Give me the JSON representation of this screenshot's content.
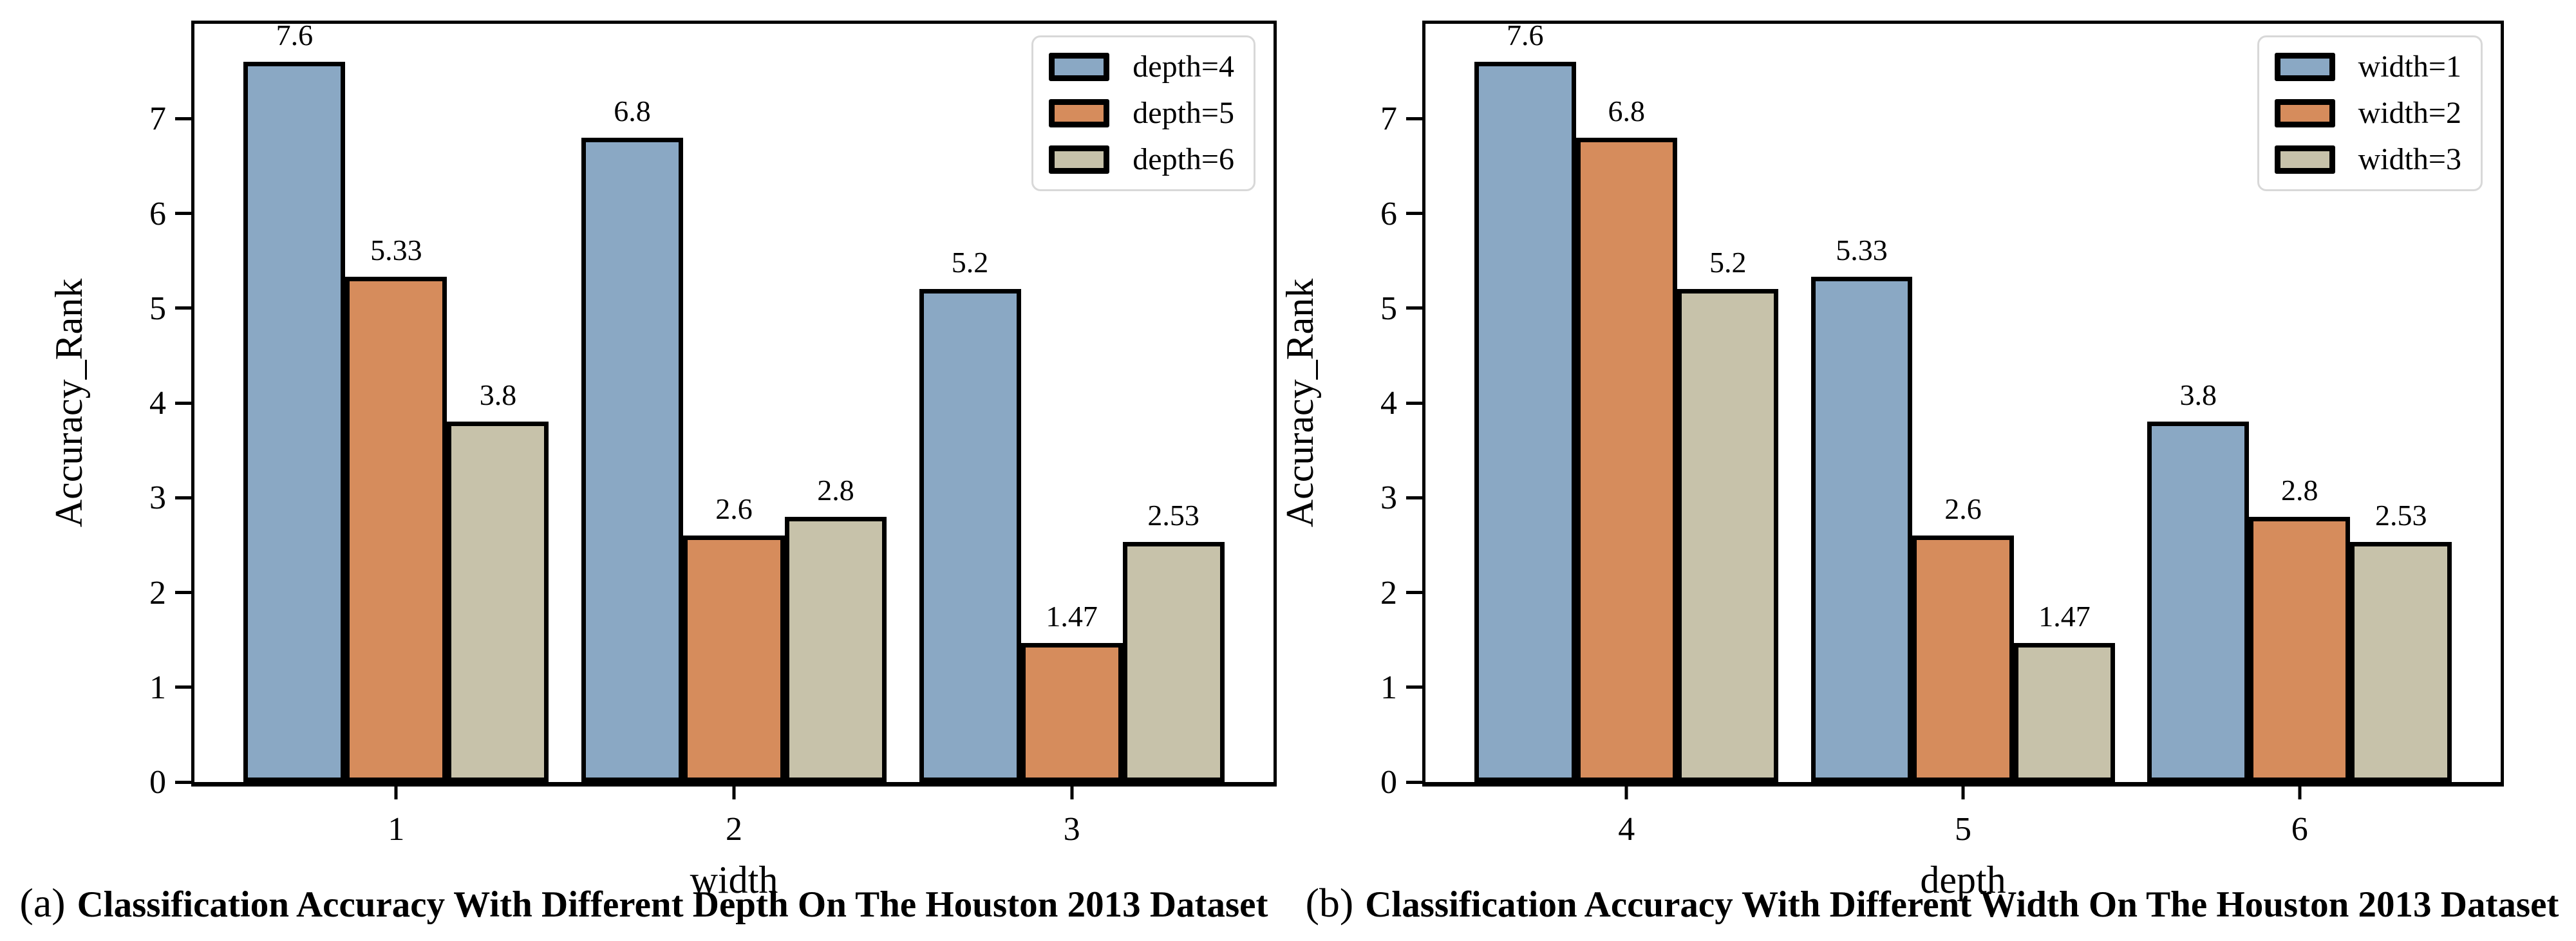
{
  "figure": {
    "background": "#ffffff",
    "panels": [
      {
        "id": "a",
        "caption_prefix": "(a)",
        "caption": "Classification Accuracy With Different Depth On The Houston 2013 Dataset"
      },
      {
        "id": "b",
        "caption_prefix": "(b)",
        "caption": "Classification Accuracy With Different Width On The Houston 2013 Dataset"
      }
    ],
    "colors": {
      "series_blue": "#8aa8c4",
      "series_orange": "#d68c5c",
      "series_tan": "#c7c2aa",
      "bar_edge": "#000000",
      "legend_border": "#d8d8d8",
      "text": "#000000"
    }
  },
  "chart_data": [
    {
      "type": "bar",
      "title": "",
      "xlabel": "width",
      "ylabel": "Accuracy_Rank",
      "categories": [
        "1",
        "2",
        "3"
      ],
      "series": [
        {
          "name": "depth=4",
          "color": "#8aa8c4",
          "values": [
            7.6,
            6.8,
            5.2
          ],
          "labels": [
            "7.6",
            "6.8",
            "5.2"
          ]
        },
        {
          "name": "depth=5",
          "color": "#d68c5c",
          "values": [
            5.33,
            2.6,
            1.47
          ],
          "labels": [
            "5.33",
            "2.6",
            "1.47"
          ]
        },
        {
          "name": "depth=6",
          "color": "#c7c2aa",
          "values": [
            3.8,
            2.8,
            2.53
          ],
          "labels": [
            "3.8",
            "2.8",
            "2.53"
          ]
        }
      ],
      "ylim": [
        0,
        8
      ],
      "yticks": [
        0,
        1,
        2,
        3,
        4,
        5,
        6,
        7
      ],
      "grid": false,
      "legend_position": "top-right"
    },
    {
      "type": "bar",
      "title": "",
      "xlabel": "depth",
      "ylabel": "Accuracy_Rank",
      "categories": [
        "4",
        "5",
        "6"
      ],
      "series": [
        {
          "name": "width=1",
          "color": "#8aa8c4",
          "values": [
            7.6,
            5.33,
            3.8
          ],
          "labels": [
            "7.6",
            "5.33",
            "3.8"
          ]
        },
        {
          "name": "width=2",
          "color": "#d68c5c",
          "values": [
            6.8,
            2.6,
            2.8
          ],
          "labels": [
            "6.8",
            "2.6",
            "2.8"
          ]
        },
        {
          "name": "width=3",
          "color": "#c7c2aa",
          "values": [
            5.2,
            1.47,
            2.53
          ],
          "labels": [
            "5.2",
            "1.47",
            "2.53"
          ]
        }
      ],
      "ylim": [
        0,
        8
      ],
      "yticks": [
        0,
        1,
        2,
        3,
        4,
        5,
        6,
        7
      ],
      "grid": false,
      "legend_position": "top-right"
    }
  ]
}
